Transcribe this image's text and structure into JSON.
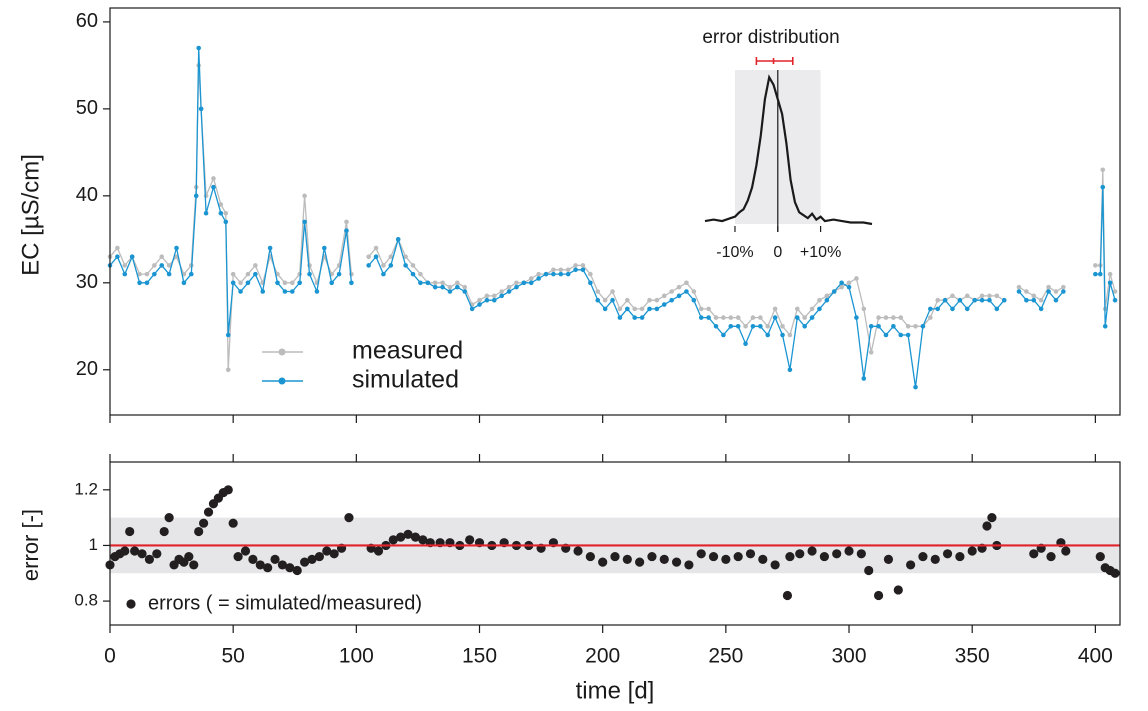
{
  "chart_data": [
    {
      "type": "line",
      "ylabel": "EC [µS/cm]",
      "xlim": [
        0,
        410
      ],
      "ylim": [
        14.8,
        61.6
      ],
      "xticks": [
        0,
        50,
        100,
        150,
        200,
        250,
        300,
        350,
        400
      ],
      "yticks": [
        20,
        30,
        40,
        50,
        60
      ],
      "legend": "lower-left",
      "x": [
        0,
        3,
        6,
        9,
        12,
        15,
        18,
        21,
        24,
        27,
        30,
        33,
        35,
        36,
        37,
        39,
        42,
        45,
        47,
        48,
        50,
        53,
        56,
        59,
        62,
        65,
        68,
        71,
        74,
        77,
        79,
        81,
        84,
        87,
        90,
        93,
        96,
        98,
        101,
        105,
        108,
        111,
        114,
        117,
        120,
        123,
        126,
        129,
        132,
        135,
        138,
        141,
        144,
        147,
        150,
        153,
        156,
        159,
        162,
        165,
        168,
        171,
        174,
        177,
        180,
        183,
        186,
        189,
        192,
        195,
        198,
        201,
        204,
        207,
        210,
        213,
        216,
        219,
        222,
        225,
        228,
        231,
        234,
        237,
        240,
        243,
        246,
        249,
        252,
        255,
        258,
        261,
        264,
        267,
        270,
        273,
        276,
        279,
        282,
        285,
        288,
        291,
        294,
        297,
        300,
        303,
        306,
        309,
        312,
        315,
        318,
        321,
        324,
        327,
        330,
        333,
        336,
        339,
        342,
        345,
        348,
        351,
        354,
        357,
        360,
        363,
        366,
        369,
        372,
        375,
        378,
        381,
        384,
        387,
        390,
        400,
        402,
        403,
        404,
        406,
        408
      ],
      "series": [
        {
          "name": "measured",
          "color": "#bcbcbc",
          "values": [
            33,
            34,
            32,
            33,
            31,
            31,
            32,
            33,
            32,
            33,
            31,
            32,
            41,
            55,
            50,
            40,
            42,
            39,
            38,
            20,
            31,
            30,
            31,
            32,
            30,
            33,
            31,
            30,
            30,
            31,
            40,
            32,
            30,
            33,
            31,
            32,
            37,
            31,
            null,
            33,
            34,
            32,
            33,
            35,
            33,
            32,
            31,
            30,
            30,
            30,
            29.5,
            30,
            29.5,
            27.5,
            28,
            28.5,
            28.5,
            29,
            29.5,
            30,
            30,
            30.5,
            31,
            31,
            31.5,
            31.5,
            31.5,
            32,
            32,
            31,
            29,
            28,
            29,
            27,
            28,
            27,
            27,
            28,
            28,
            28.5,
            29,
            29.5,
            30,
            29,
            27,
            27,
            26,
            26,
            26,
            26,
            25,
            26,
            26,
            25,
            27,
            25,
            24,
            27,
            26,
            27,
            28,
            28.5,
            29,
            29.5,
            30,
            30.5,
            27,
            22,
            26,
            26,
            26,
            26,
            25,
            25,
            25,
            26,
            28,
            28,
            28.5,
            28,
            28.5,
            28,
            28.5,
            28.5,
            28.5,
            28,
            null,
            29.5,
            29,
            28.5,
            28,
            29.5,
            29,
            29.5,
            null,
            32,
            32,
            43,
            27,
            31,
            29
          ]
        },
        {
          "name": "simulated",
          "color": "#1a95d2",
          "values": [
            32,
            33,
            31,
            33,
            30,
            30,
            31,
            32,
            31,
            34,
            30,
            31,
            40,
            57,
            50,
            38,
            41,
            38,
            37,
            24,
            30,
            29,
            30,
            31,
            29,
            34,
            30,
            29,
            29,
            30,
            37,
            31,
            29,
            34,
            30,
            31,
            36,
            30,
            null,
            32,
            33,
            31,
            32,
            35,
            32,
            31,
            30,
            30,
            29.5,
            29.5,
            29,
            29.5,
            29,
            27,
            27.5,
            28,
            28,
            28.5,
            29,
            29.5,
            30,
            30,
            30.5,
            31,
            31,
            31,
            31,
            31.5,
            31.5,
            30,
            28,
            27,
            28,
            26,
            27,
            26,
            26,
            27,
            27,
            27.5,
            28,
            28.5,
            29,
            28,
            26,
            26,
            25,
            24,
            25,
            25,
            23,
            25,
            25,
            24,
            26,
            24,
            20,
            26,
            25,
            26,
            27,
            28,
            29,
            30,
            29.5,
            26,
            19,
            25,
            25,
            24,
            25,
            24,
            24,
            18,
            25,
            27,
            27,
            28,
            27,
            28,
            27,
            28,
            28,
            28,
            27,
            28,
            null,
            29,
            28,
            28,
            27,
            29,
            28,
            29,
            null,
            31,
            31,
            41,
            25,
            30,
            28
          ]
        }
      ]
    },
    {
      "type": "inset-line",
      "title": "error distribution",
      "xlim": [
        -17,
        22
      ],
      "ylim": [
        0,
        1.05
      ],
      "xticks": [
        {
          "value": -10,
          "label": "-10%"
        },
        0,
        {
          "value": 10,
          "label": "+10%"
        }
      ],
      "band": [
        -10,
        10
      ],
      "reference_x": 0,
      "color": "#1a1a1a",
      "error_bar": {
        "center": -1,
        "low": -5,
        "high": 3.5,
        "color": "#e0242c"
      },
      "x": [
        -17,
        -15,
        -13,
        -11,
        -10,
        -9,
        -8,
        -7,
        -6,
        -5,
        -4,
        -3,
        -2,
        -1,
        0,
        1,
        2,
        3,
        4,
        5,
        6,
        7,
        8,
        9,
        10,
        11,
        13,
        15,
        17,
        20,
        22
      ],
      "values": [
        0.02,
        0.03,
        0.02,
        0.04,
        0.05,
        0.08,
        0.1,
        0.16,
        0.25,
        0.4,
        0.6,
        0.85,
        1.0,
        0.95,
        0.85,
        0.75,
        0.55,
        0.3,
        0.15,
        0.08,
        0.06,
        0.04,
        0.07,
        0.03,
        0.05,
        0.02,
        0.03,
        0.02,
        0.01,
        0.01,
        0.0
      ]
    },
    {
      "type": "scatter",
      "xlabel": "time [d]",
      "ylabel": "error [-]",
      "xlim": [
        0,
        410
      ],
      "ylim": [
        0.714,
        1.3
      ],
      "xticks": [
        0,
        50,
        100,
        150,
        200,
        250,
        300,
        350,
        400
      ],
      "yticks": [
        0.8,
        1,
        1.2
      ],
      "band": [
        0.9,
        1.1
      ],
      "reference_line": 1,
      "reference_color": "#e0242c",
      "legend": "lower-left",
      "series": [
        {
          "name": "errors ( = simulated/measured)",
          "color": "#231f20",
          "x": [
            0,
            2,
            4,
            6,
            8,
            10,
            13,
            16,
            19,
            22,
            24,
            26,
            28,
            30,
            32,
            34,
            36,
            38,
            40,
            42,
            44,
            46,
            48,
            50,
            52,
            55,
            58,
            61,
            64,
            67,
            70,
            73,
            76,
            79,
            82,
            85,
            88,
            91,
            94,
            97,
            106,
            109,
            112,
            115,
            118,
            121,
            124,
            127,
            130,
            134,
            138,
            142,
            146,
            150,
            155,
            160,
            165,
            170,
            175,
            180,
            185,
            190,
            195,
            200,
            205,
            210,
            215,
            220,
            225,
            230,
            235,
            240,
            245,
            250,
            255,
            260,
            265,
            270,
            275,
            276,
            280,
            285,
            290,
            295,
            300,
            305,
            308,
            312,
            316,
            320,
            325,
            330,
            335,
            340,
            345,
            350,
            354,
            356,
            358,
            360,
            375,
            378,
            382,
            386,
            388,
            402,
            404,
            406,
            408
          ],
          "values": [
            0.93,
            0.96,
            0.97,
            0.98,
            1.05,
            0.98,
            0.97,
            0.95,
            0.97,
            1.05,
            1.1,
            0.93,
            0.95,
            0.94,
            0.96,
            0.93,
            1.05,
            1.08,
            1.12,
            1.15,
            1.17,
            1.19,
            1.2,
            1.08,
            0.96,
            0.98,
            0.95,
            0.93,
            0.92,
            0.95,
            0.93,
            0.92,
            0.91,
            0.94,
            0.95,
            0.96,
            0.98,
            0.97,
            0.99,
            1.1,
            0.99,
            0.98,
            1.0,
            1.02,
            1.03,
            1.04,
            1.03,
            1.02,
            1.01,
            1.01,
            1.01,
            1.0,
            1.02,
            1.01,
            1.0,
            1.01,
            1.0,
            1.0,
            0.99,
            1.01,
            0.99,
            0.98,
            0.96,
            0.94,
            0.96,
            0.95,
            0.94,
            0.96,
            0.95,
            0.94,
            0.93,
            0.97,
            0.96,
            0.95,
            0.96,
            0.97,
            0.95,
            0.93,
            0.82,
            0.96,
            0.97,
            0.98,
            0.96,
            0.97,
            0.98,
            0.97,
            0.91,
            0.82,
            0.95,
            0.84,
            0.93,
            0.96,
            0.95,
            0.97,
            0.96,
            0.98,
            0.99,
            1.07,
            1.1,
            1.0,
            0.97,
            0.99,
            0.96,
            1.01,
            0.98,
            0.96,
            0.92,
            0.91,
            0.9
          ]
        }
      ]
    }
  ]
}
